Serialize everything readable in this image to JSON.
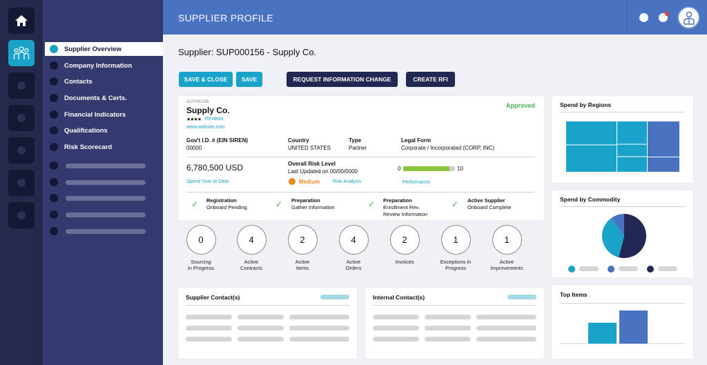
{
  "topbar": {
    "title": "SUPPLIER PROFILE"
  },
  "icons": {
    "home": "home-icon",
    "suppliers": "people-group-icon",
    "profile": "user-icon",
    "notification": "bell-icon",
    "badge_color": "#e53935"
  },
  "nav": {
    "items": [
      {
        "label": "Supplier Overview",
        "active": true
      },
      {
        "label": "Company Information"
      },
      {
        "label": "Contacts"
      },
      {
        "label": "Documents & Certs."
      },
      {
        "label": "Financial Indicators"
      },
      {
        "label": "Qualifications"
      },
      {
        "label": "Risk Scorecard"
      }
    ]
  },
  "header": {
    "title": "Supplier: SUP000156 - Supply Co."
  },
  "actions": {
    "save_close": "SAVE & CLOSE",
    "save": "SAVE",
    "request_change": "REQUEST INFORMATION CHANGE",
    "create_rfi": "CREATE RFI"
  },
  "supplier": {
    "id": "SUP000156",
    "name": "Supply Co.",
    "stars": "★★★★",
    "reviews_label": "Reviews",
    "website": "www.website.com",
    "status": "Approved",
    "fields": {
      "govt_id_label": "Gov't I.D. # (EIN SIREN)",
      "govt_id_value": "00000",
      "country_label": "Country",
      "country_value": "UNITED STATES",
      "type_label": "Type",
      "type_value": "Partner",
      "legal_form_label": "Legal Form",
      "legal_form_value": "Corporate / Incorporated (CORP, INC)"
    },
    "spend": {
      "value": "6,780,500 USD",
      "label": "Spend Year-to-Date"
    },
    "risk": {
      "label": "Overall Risk Level",
      "updated": "Last Updated on 00/00/0000",
      "level": "Medium",
      "level_color": "#ef8a23",
      "analysis_link": "Risk Analysis"
    },
    "performance": {
      "min": "0",
      "max": "10",
      "score_fraction": 0.89,
      "label": "Performance",
      "bar_color": "#8cc63f"
    },
    "progress": [
      {
        "title": "Registration",
        "sub": "Onboard Pending"
      },
      {
        "title": "Preparation",
        "sub": "Gather Information"
      },
      {
        "title": "Preparation",
        "sub": "Enrollment Rev.\nReview Information"
      },
      {
        "title": "Active Supplier",
        "sub": "Onboard Complete"
      }
    ]
  },
  "stats": [
    {
      "value": "0",
      "label": "Sourcing\nin Progress"
    },
    {
      "value": "4",
      "label": "Active\nContracts"
    },
    {
      "value": "2",
      "label": "Active\nItems"
    },
    {
      "value": "4",
      "label": "Active\nOrders"
    },
    {
      "value": "2",
      "label": "Invoices"
    },
    {
      "value": "1",
      "label": "Exceptions in\nProgress"
    },
    {
      "value": "1",
      "label": "Active\nImprovements"
    }
  ],
  "contacts": {
    "supplier_title": "Supplier Contact(s)",
    "internal_title": "Internal Contact(s)"
  },
  "widgets": {
    "regions_title": "Spend by Regions",
    "commodity_title": "Spend by Commodity",
    "top_items_title": "Top Items",
    "commodity_fractions": [
      0.54,
      0.36,
      0.1
    ],
    "top_items_values": [
      0.63,
      1.0
    ],
    "colors": {
      "teal": "#1aa3c8",
      "blue": "#4873c1",
      "navy": "#232852"
    }
  }
}
